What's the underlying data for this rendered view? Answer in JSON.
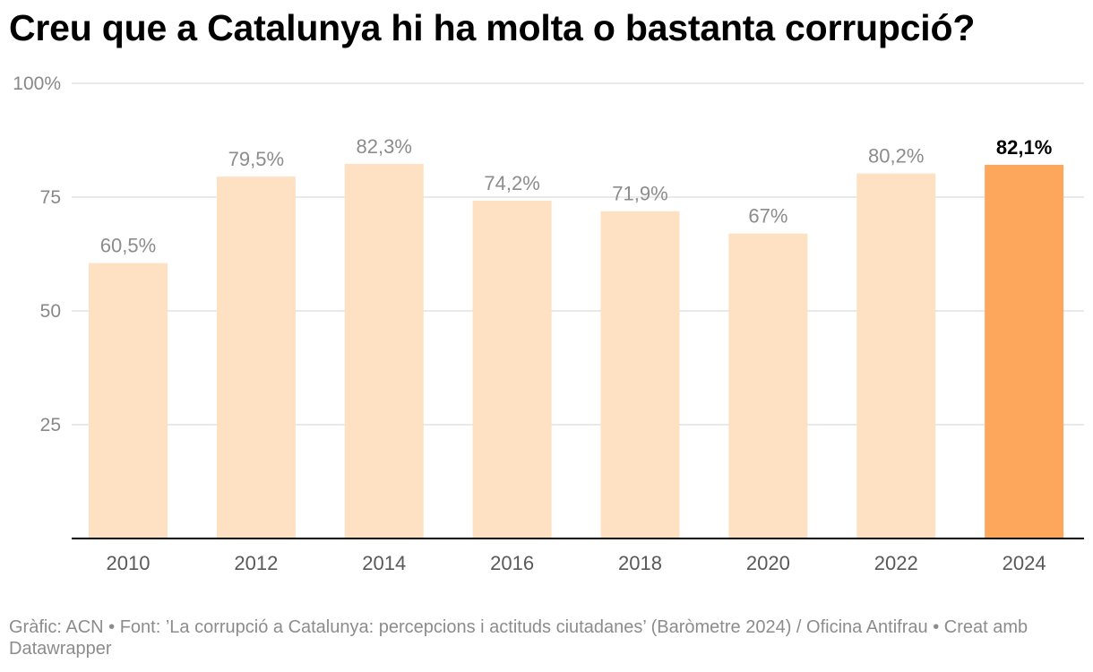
{
  "title": "Creu que a Catalunya hi ha molta o bastanta corrupció?",
  "footer": "Gràfic: ACN • Font: ’La corrupció a Catalunya: percepcions i actituds ciutadanes’ (Baròmetre 2024) / Oficina Antifrau • Creat amb Datawrapper",
  "chart_data": {
    "type": "bar",
    "categories": [
      "2010",
      "2012",
      "2014",
      "2016",
      "2018",
      "2020",
      "2022",
      "2024"
    ],
    "values": [
      60.5,
      79.5,
      82.3,
      74.2,
      71.9,
      67,
      80.2,
      82.1
    ],
    "value_labels": [
      "60,5%",
      "79,5%",
      "82,3%",
      "74,2%",
      "71,9%",
      "67%",
      "80,2%",
      "82,1%"
    ],
    "ylim": [
      0,
      100
    ],
    "yticks": [
      25,
      50,
      75,
      100
    ],
    "ytick_labels": [
      "25",
      "50",
      "75",
      "100%"
    ],
    "highlight_index": 7,
    "grid": true,
    "colors": {
      "bar": "#fee0c2",
      "highlight": "#fda75c",
      "label": "#8c8c8c",
      "highlight_label": "#000000",
      "grid": "#e2e2e2",
      "axis": "#000000",
      "tick_label": "#888888",
      "category_label": "#595959"
    }
  }
}
